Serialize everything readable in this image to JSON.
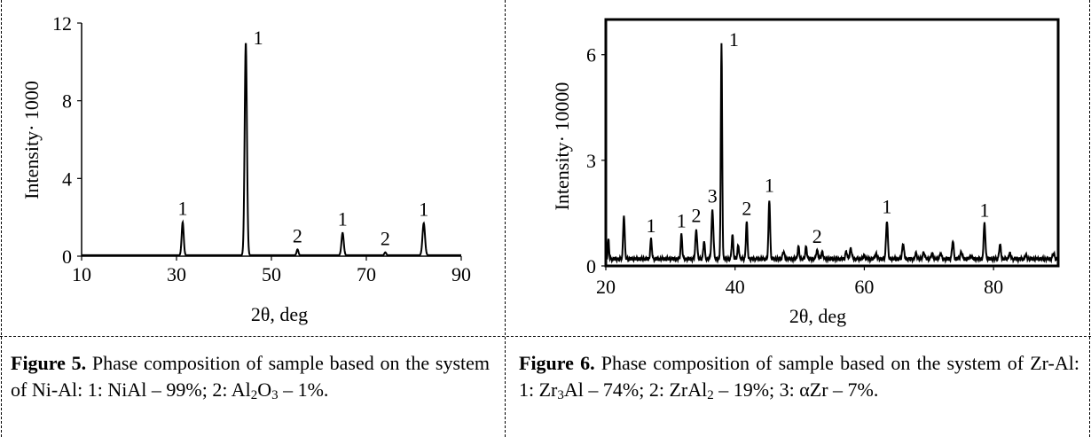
{
  "chart_data": [
    {
      "type": "line",
      "title": "",
      "xlabel": "2θ, deg",
      "ylabel": "Intensity· 1000",
      "xlim": [
        10,
        90
      ],
      "ylim": [
        0,
        12
      ],
      "xticks": [
        10,
        30,
        50,
        70,
        90
      ],
      "yticks": [
        0,
        4,
        8,
        12
      ],
      "grid": false,
      "baseline": 0.05,
      "peaks": [
        {
          "x": 31.3,
          "y": 1.75,
          "w": 0.45,
          "label": "1"
        },
        {
          "x": 44.6,
          "y": 11.0,
          "w": 0.5,
          "label": "1"
        },
        {
          "x": 55.5,
          "y": 0.35,
          "w": 0.4,
          "label": "2"
        },
        {
          "x": 65.0,
          "y": 1.2,
          "w": 0.5,
          "label": "1"
        },
        {
          "x": 74.0,
          "y": 0.2,
          "w": 0.4,
          "label": "2"
        },
        {
          "x": 82.1,
          "y": 1.7,
          "w": 0.55,
          "label": "1"
        }
      ]
    },
    {
      "type": "line",
      "title": "",
      "xlabel": "2θ, deg",
      "ylabel": "Intensity· 10000",
      "xlim": [
        20,
        90
      ],
      "ylim": [
        0,
        7
      ],
      "xticks": [
        20,
        40,
        60,
        80
      ],
      "yticks": [
        0,
        3,
        6
      ],
      "grid": false,
      "baseline": 0.2,
      "peaks": [
        {
          "x": 20.4,
          "y": 0.75,
          "w": 0.2,
          "label": ""
        },
        {
          "x": 22.8,
          "y": 1.45,
          "w": 0.25,
          "label": ""
        },
        {
          "x": 27.0,
          "y": 0.75,
          "w": 0.25,
          "label": "1"
        },
        {
          "x": 31.7,
          "y": 0.9,
          "w": 0.25,
          "label": "1"
        },
        {
          "x": 34.0,
          "y": 1.05,
          "w": 0.28,
          "label": "2"
        },
        {
          "x": 35.2,
          "y": 0.7,
          "w": 0.25,
          "label": ""
        },
        {
          "x": 36.5,
          "y": 1.6,
          "w": 0.3,
          "label": "3"
        },
        {
          "x": 37.9,
          "y": 6.3,
          "w": 0.22,
          "label": "1"
        },
        {
          "x": 39.6,
          "y": 0.9,
          "w": 0.25,
          "label": ""
        },
        {
          "x": 40.5,
          "y": 0.6,
          "w": 0.25,
          "label": ""
        },
        {
          "x": 41.8,
          "y": 1.25,
          "w": 0.25,
          "label": "2"
        },
        {
          "x": 45.3,
          "y": 1.9,
          "w": 0.25,
          "label": "1"
        },
        {
          "x": 47.5,
          "y": 0.4,
          "w": 0.3,
          "label": ""
        },
        {
          "x": 49.8,
          "y": 0.55,
          "w": 0.25,
          "label": ""
        },
        {
          "x": 51.0,
          "y": 0.55,
          "w": 0.25,
          "label": ""
        },
        {
          "x": 52.7,
          "y": 0.45,
          "w": 0.3,
          "label": "2"
        },
        {
          "x": 53.5,
          "y": 0.4,
          "w": 0.3,
          "label": ""
        },
        {
          "x": 57.2,
          "y": 0.4,
          "w": 0.3,
          "label": ""
        },
        {
          "x": 57.9,
          "y": 0.5,
          "w": 0.3,
          "label": ""
        },
        {
          "x": 60.0,
          "y": 0.3,
          "w": 0.3,
          "label": ""
        },
        {
          "x": 61.8,
          "y": 0.35,
          "w": 0.3,
          "label": ""
        },
        {
          "x": 63.5,
          "y": 1.3,
          "w": 0.28,
          "label": "1"
        },
        {
          "x": 66.0,
          "y": 0.65,
          "w": 0.28,
          "label": ""
        },
        {
          "x": 68.0,
          "y": 0.35,
          "w": 0.3,
          "label": ""
        },
        {
          "x": 69.2,
          "y": 0.4,
          "w": 0.3,
          "label": ""
        },
        {
          "x": 70.5,
          "y": 0.35,
          "w": 0.3,
          "label": ""
        },
        {
          "x": 71.8,
          "y": 0.35,
          "w": 0.3,
          "label": ""
        },
        {
          "x": 73.7,
          "y": 0.7,
          "w": 0.28,
          "label": ""
        },
        {
          "x": 75.0,
          "y": 0.4,
          "w": 0.3,
          "label": ""
        },
        {
          "x": 76.5,
          "y": 0.3,
          "w": 0.3,
          "label": ""
        },
        {
          "x": 78.6,
          "y": 1.2,
          "w": 0.28,
          "label": "1"
        },
        {
          "x": 81.0,
          "y": 0.6,
          "w": 0.28,
          "label": ""
        },
        {
          "x": 82.5,
          "y": 0.35,
          "w": 0.3,
          "label": ""
        },
        {
          "x": 85.0,
          "y": 0.3,
          "w": 0.3,
          "label": ""
        },
        {
          "x": 89.3,
          "y": 0.35,
          "w": 0.3,
          "label": ""
        }
      ]
    }
  ],
  "captions": [
    {
      "label": "Figure 5.",
      "text_parts": [
        " Phase composition of sample based on the system of Ni-Al: 1: NiAl – 99%; 2: Al",
        "2",
        "O",
        "3",
        " – 1%."
      ]
    },
    {
      "label": "Figure 6.",
      "text_parts": [
        " Phase composition of sample based on the system of Zr-Al: 1: Zr",
        "3",
        "Al – 74%; 2: ZrAl",
        "2",
        " – 19%; 3: αZr – 7%."
      ]
    }
  ]
}
